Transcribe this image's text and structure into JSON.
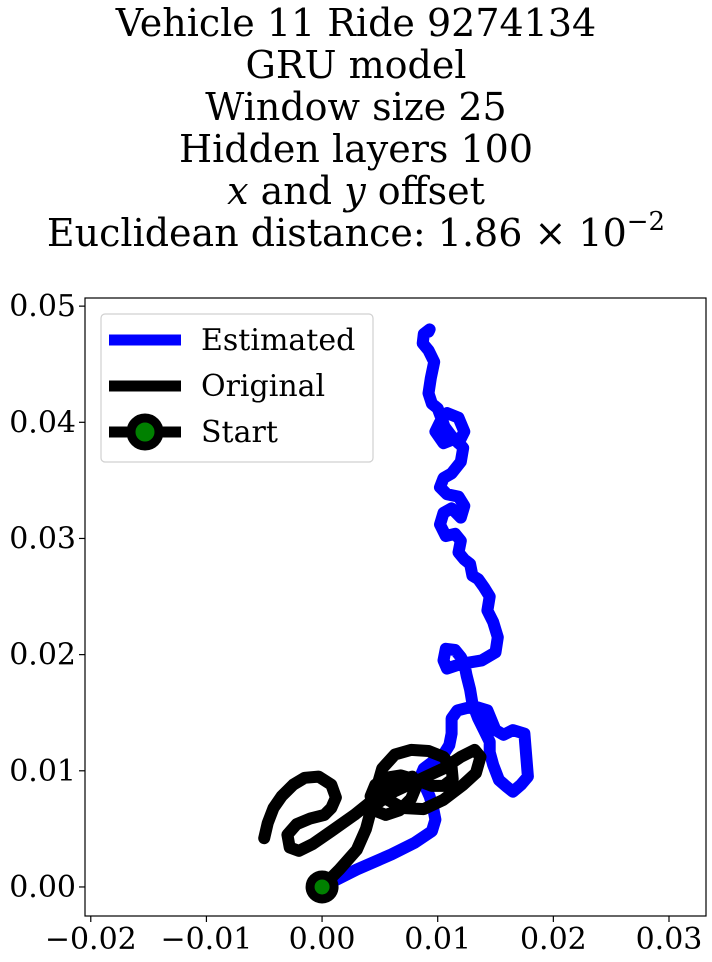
{
  "title": {
    "line1": "Vehicle 11 Ride 9274134",
    "line2": "GRU model",
    "line3": "Window size 25",
    "line4": "Hidden layers 100",
    "line5_x": "x",
    "line5_mid": " and ",
    "line5_y": "y",
    "line5_end": " offset",
    "line6_prefix": "Euclidean distance: 1.86",
    "line6_times": " × 10",
    "line6_exp": "−2"
  },
  "chart_data": {
    "type": "line",
    "xlim": [
      -0.0205,
      0.0332
    ],
    "ylim": [
      -0.0025,
      0.0507
    ],
    "xticks": [
      -0.02,
      -0.01,
      0.0,
      0.01,
      0.02,
      0.03
    ],
    "xtick_labels": [
      "−0.02",
      "−0.01",
      "0.00",
      "0.01",
      "0.02",
      "0.03"
    ],
    "yticks": [
      0.0,
      0.01,
      0.02,
      0.03,
      0.04,
      0.05
    ],
    "ytick_labels": [
      "0.00",
      "0.01",
      "0.02",
      "0.03",
      "0.04",
      "0.05"
    ],
    "grid": false,
    "legend_position": "upper-left",
    "series": [
      {
        "name": "Estimated",
        "color": "#0000ff",
        "x": [
          0.0,
          0.003,
          0.006,
          0.008,
          0.0095,
          0.0098,
          0.0096,
          0.0093,
          0.0089,
          0.0085,
          0.0088,
          0.0096,
          0.0105,
          0.011,
          0.0112,
          0.0112,
          0.0117,
          0.0125,
          0.0133,
          0.0143,
          0.015,
          0.0157,
          0.0165,
          0.0175,
          0.0178,
          0.0172,
          0.0165,
          0.016,
          0.0153,
          0.0148,
          0.0145,
          0.0145,
          0.014,
          0.0135,
          0.013,
          0.0128,
          0.0125,
          0.0123,
          0.012,
          0.0115,
          0.0107,
          0.0105,
          0.0108,
          0.012,
          0.0138,
          0.015,
          0.0152,
          0.0148,
          0.0143,
          0.0145,
          0.014,
          0.0135,
          0.013,
          0.0128,
          0.0123,
          0.0118,
          0.012,
          0.0115,
          0.0107,
          0.0102,
          0.0105,
          0.0112,
          0.012,
          0.0123,
          0.0118,
          0.0108,
          0.0102,
          0.0105,
          0.0112,
          0.012,
          0.0122,
          0.0115,
          0.0105,
          0.0098,
          0.0102,
          0.0108,
          0.0118,
          0.0123,
          0.0118,
          0.0112,
          0.0106,
          0.01,
          0.0095,
          0.0092,
          0.0094,
          0.0097,
          0.0092,
          0.0087,
          0.0088,
          0.0093,
          0.0092
        ],
        "y": [
          0.0,
          0.0015,
          0.0028,
          0.0038,
          0.0048,
          0.0058,
          0.0068,
          0.0078,
          0.0087,
          0.0095,
          0.0102,
          0.0108,
          0.0114,
          0.0122,
          0.0132,
          0.0145,
          0.0152,
          0.0154,
          0.0155,
          0.0152,
          0.0135,
          0.0131,
          0.0135,
          0.0132,
          0.0095,
          0.0088,
          0.0082,
          0.0086,
          0.0092,
          0.0105,
          0.0116,
          0.0125,
          0.0135,
          0.0145,
          0.0158,
          0.017,
          0.0182,
          0.0192,
          0.0198,
          0.0204,
          0.0205,
          0.0195,
          0.0188,
          0.0192,
          0.0195,
          0.0202,
          0.0215,
          0.0228,
          0.0238,
          0.025,
          0.0258,
          0.0265,
          0.0268,
          0.0278,
          0.0282,
          0.0288,
          0.0298,
          0.0304,
          0.0302,
          0.0312,
          0.0322,
          0.0326,
          0.0318,
          0.0328,
          0.0336,
          0.0338,
          0.0344,
          0.0352,
          0.0356,
          0.0366,
          0.0378,
          0.0386,
          0.0382,
          0.0392,
          0.04,
          0.0408,
          0.0404,
          0.0392,
          0.0382,
          0.0388,
          0.0396,
          0.0412,
          0.0416,
          0.0425,
          0.0438,
          0.0452,
          0.0462,
          0.0468,
          0.0476,
          0.048,
          0.0478
        ]
      },
      {
        "name": "Original",
        "color": "#000000",
        "x": [
          0.0,
          0.0015,
          0.003,
          0.0038,
          0.0042,
          0.0048,
          0.0055,
          0.0062,
          0.0075,
          0.009,
          0.0105,
          0.012,
          0.0132,
          0.0137,
          0.0133,
          0.0122,
          0.0105,
          0.0088,
          0.007,
          0.0055,
          0.0048,
          0.0052,
          0.0063,
          0.0077,
          0.0092,
          0.0105,
          0.0112,
          0.0113,
          0.0105,
          0.0095,
          0.0082,
          0.0068,
          0.0055,
          0.0046,
          0.0042,
          0.0045,
          0.0055,
          0.0067,
          0.0077,
          0.0082,
          0.0078,
          0.0065,
          0.0048,
          0.0028,
          0.0008,
          -0.0008,
          -0.002,
          -0.0028,
          -0.003,
          -0.0022,
          -0.001,
          0.0002,
          0.0008,
          0.0012,
          0.0008,
          -0.0003,
          -0.0015,
          -0.0025,
          -0.0035,
          -0.0042,
          -0.0047,
          -0.005
        ],
        "y": [
          0.0,
          0.0015,
          0.0032,
          0.005,
          0.0065,
          0.0072,
          0.0077,
          0.0082,
          0.0088,
          0.0095,
          0.0102,
          0.0112,
          0.0118,
          0.0112,
          0.0098,
          0.0088,
          0.0075,
          0.0067,
          0.0068,
          0.0076,
          0.0088,
          0.0102,
          0.0114,
          0.0118,
          0.0117,
          0.0112,
          0.0103,
          0.0093,
          0.0087,
          0.0087,
          0.0092,
          0.0096,
          0.0094,
          0.0088,
          0.0078,
          0.0066,
          0.0062,
          0.0066,
          0.0076,
          0.0088,
          0.0095,
          0.0091,
          0.0078,
          0.0062,
          0.0048,
          0.0037,
          0.0031,
          0.0034,
          0.0045,
          0.0054,
          0.0059,
          0.0062,
          0.0068,
          0.0077,
          0.0088,
          0.0095,
          0.0094,
          0.0088,
          0.0078,
          0.0068,
          0.0055,
          0.0042
        ]
      }
    ],
    "start_marker": {
      "name": "Start",
      "x": 0.0,
      "y": 0.0,
      "edge_color": "#000000",
      "face_color": "#008000"
    }
  }
}
